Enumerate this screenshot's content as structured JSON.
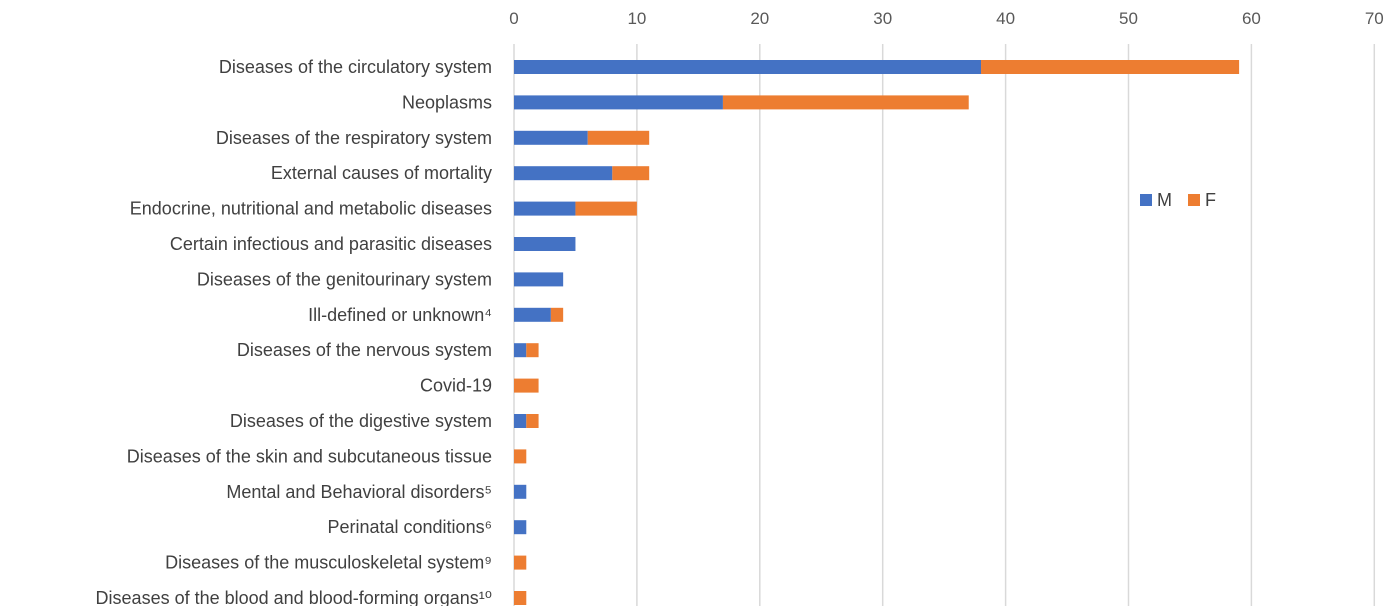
{
  "chart_data": {
    "type": "bar",
    "orientation": "horizontal",
    "stacked": true,
    "title": "",
    "xlabel": "",
    "ylabel": "",
    "xlim": [
      0,
      70
    ],
    "xticks": [
      "0",
      "10",
      "20",
      "30",
      "40",
      "50",
      "60",
      "70"
    ],
    "xaxis_position": "top",
    "grid": true,
    "legend_position": "right",
    "categories": [
      "Diseases of the circulatory system",
      "Neoplasms",
      "Diseases of the respiratory system",
      "External causes of mortality",
      "Endocrine, nutritional and metabolic diseases",
      "Certain infectious and parasitic diseases",
      "Diseases of the genitourinary system",
      "Ill-defined or unknown⁴",
      "Diseases of the nervous system",
      "Covid-19",
      "Diseases of the digestive system",
      "Diseases of the skin and subcutaneous tissue",
      "Mental and Behavioral disorders⁵",
      "Perinatal conditions⁶",
      "Diseases of the musculoskeletal system⁹",
      "Diseases of the blood and blood-forming organs¹⁰"
    ],
    "series": [
      {
        "name": "M",
        "color": "#4472c4",
        "values": [
          38,
          17,
          6,
          8,
          5,
          5,
          4,
          3,
          1,
          0,
          1,
          0,
          1,
          1,
          0,
          0
        ]
      },
      {
        "name": "F",
        "color": "#ed7d31",
        "values": [
          21,
          20,
          5,
          3,
          5,
          0,
          0,
          1,
          1,
          2,
          1,
          1,
          0,
          0,
          1,
          1
        ]
      }
    ]
  }
}
